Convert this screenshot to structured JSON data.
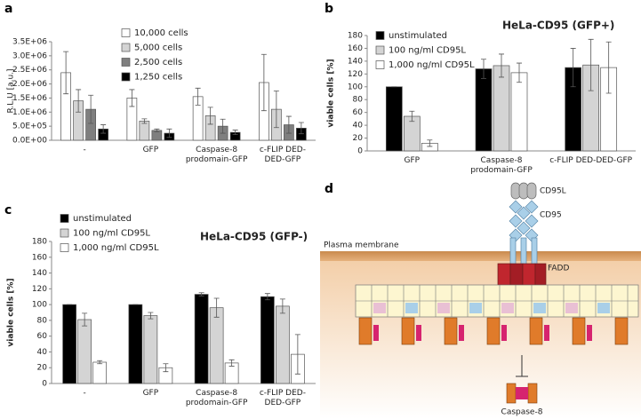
{
  "panel_labels": [
    "a",
    "b",
    "c",
    "d"
  ],
  "chart_data": [
    {
      "type": "bar",
      "y_label": "R.L.U [a.u.]",
      "legend": "top-center",
      "categories": [
        "-",
        "GFP",
        "Caspase-8 prodomain-GFP",
        "c-FLIP DED-DED-GFP"
      ],
      "series": [
        {
          "name": "10,000 cells",
          "color": "#ffffff",
          "values": [
            2400000,
            1500000,
            1550000,
            2050000
          ],
          "errors": [
            750000,
            300000,
            300000,
            1000000
          ]
        },
        {
          "name": "5,000 cells",
          "color": "#d4d4d4",
          "values": [
            1400000,
            680000,
            870000,
            1100000
          ],
          "errors": [
            400000,
            80000,
            300000,
            650000
          ]
        },
        {
          "name": "2,500 cells",
          "color": "#7f7f7f",
          "values": [
            1100000,
            350000,
            500000,
            550000
          ],
          "errors": [
            500000,
            50000,
            250000,
            300000
          ]
        },
        {
          "name": "1,250 cells",
          "color": "#000000",
          "values": [
            400000,
            250000,
            280000,
            430000
          ],
          "errors": [
            150000,
            150000,
            80000,
            200000
          ]
        }
      ],
      "ylim": [
        0,
        3500000
      ],
      "yticks": [
        {
          "value": 0,
          "label": "0.0E+00"
        },
        {
          "value": 500000,
          "label": "5.0E+05"
        },
        {
          "value": 1000000,
          "label": "1.0E+06"
        },
        {
          "value": 1500000,
          "label": "1.5E+06"
        },
        {
          "value": 2000000,
          "label": "2.0E+06"
        },
        {
          "value": 2500000,
          "label": "2.5E+06"
        },
        {
          "value": 3000000,
          "label": "3.0E+06"
        },
        {
          "value": 3500000,
          "label": "3.5E+06"
        }
      ]
    },
    {
      "type": "bar",
      "title": "HeLa-CD95 (GFP+)",
      "y_label": "viable cells [%]",
      "legend": "top-left",
      "categories": [
        "GFP",
        "Caspase-8 prodomain-GFP",
        "c-FLIP DED-DED-GFP"
      ],
      "series": [
        {
          "name": "unstimulated",
          "color": "#000000",
          "values": [
            100,
            128,
            130
          ],
          "errors": [
            0,
            15,
            30
          ]
        },
        {
          "name": "100 ng/ml CD95L",
          "color": "#d4d4d4",
          "values": [
            54,
            133,
            134
          ],
          "errors": [
            8,
            18,
            40
          ]
        },
        {
          "name": "1,000 ng/ml CD95L",
          "color": "#ffffff",
          "values": [
            12,
            122,
            130
          ],
          "errors": [
            5,
            15,
            40
          ]
        }
      ],
      "ylim": [
        0,
        180
      ],
      "yticks": [
        0,
        20,
        40,
        60,
        80,
        100,
        120,
        140,
        160,
        180
      ]
    },
    {
      "type": "bar",
      "title": "HeLa-CD95 (GFP-)",
      "y_label": "viable cells [%]",
      "legend": "above-left",
      "categories": [
        "-",
        "GFP",
        "Caspase-8 prodomain-GFP",
        "c-FLIP DED-DED-GFP"
      ],
      "series": [
        {
          "name": "unstimulated",
          "color": "#000000",
          "values": [
            100,
            100,
            113,
            110
          ],
          "errors": [
            0,
            0,
            2,
            4
          ]
        },
        {
          "name": "100 ng/ml CD95L",
          "color": "#d4d4d4",
          "values": [
            81,
            86,
            96,
            98
          ],
          "errors": [
            8,
            4,
            12,
            9
          ]
        },
        {
          "name": "1,000 ng/ml CD95L",
          "color": "#ffffff",
          "values": [
            27,
            20,
            26,
            37
          ],
          "errors": [
            2,
            5,
            4,
            25
          ]
        }
      ],
      "ylim": [
        0,
        180
      ],
      "yticks": [
        0,
        20,
        40,
        60,
        80,
        100,
        120,
        140,
        160,
        180
      ]
    }
  ],
  "diagram": {
    "ligand": "CD95L",
    "receptor": "CD95",
    "membrane": "Plasma membrane",
    "adaptor": "FADD",
    "enzyme": "Caspase-8"
  }
}
